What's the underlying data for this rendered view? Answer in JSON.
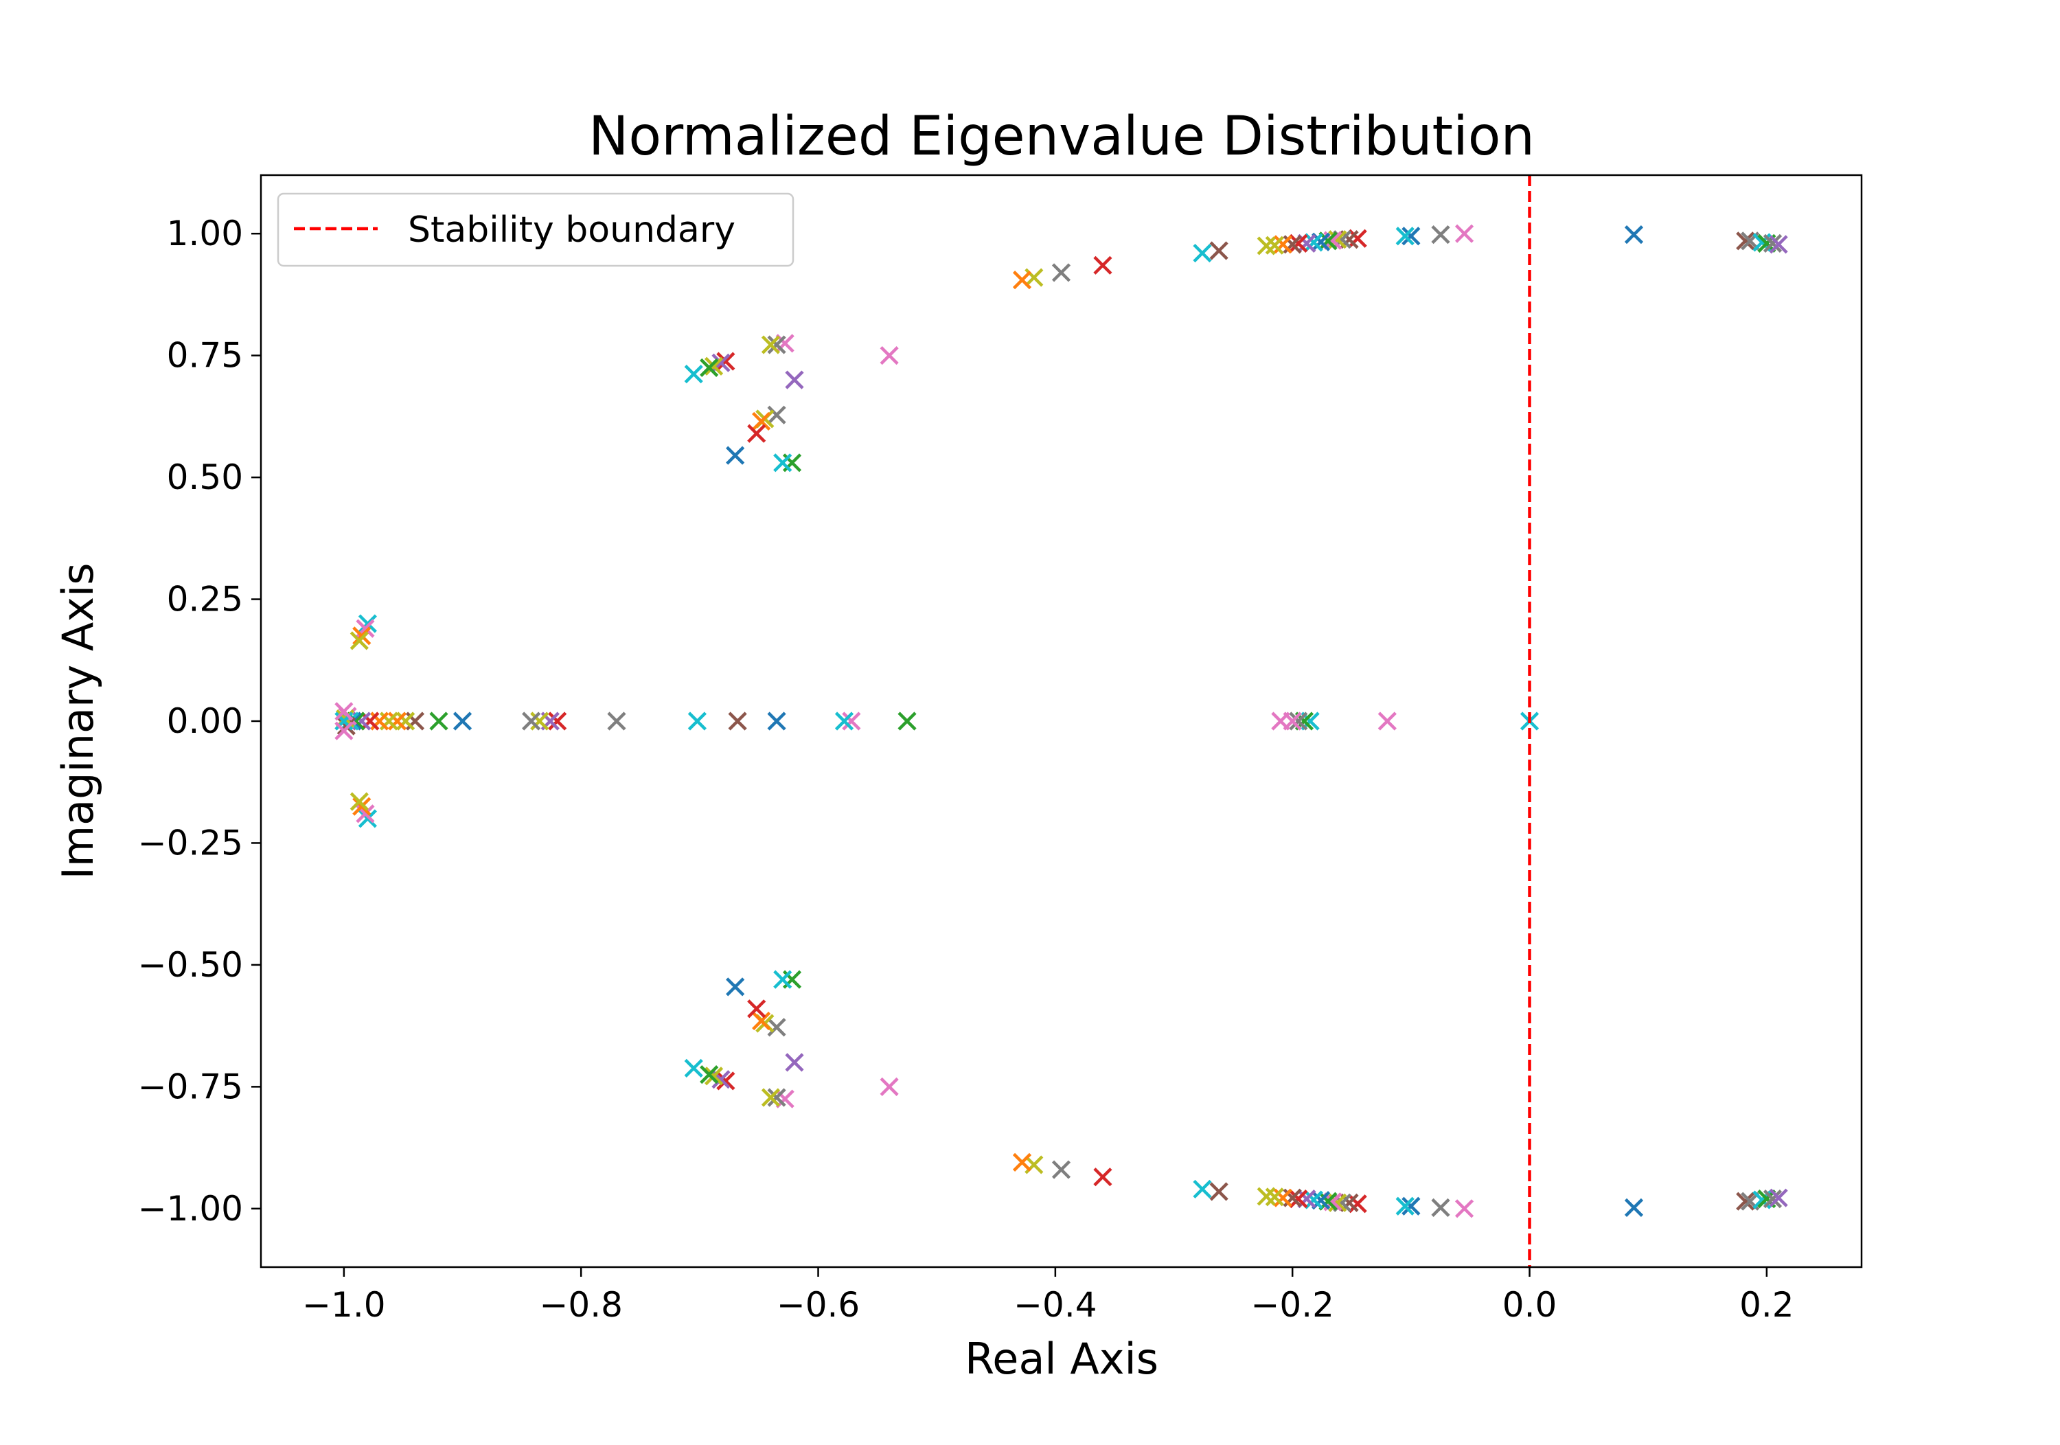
{
  "chart_data": {
    "type": "scatter",
    "title": "Normalized Eigenvalue Distribution",
    "xlabel": "Real Axis",
    "ylabel": "Imaginary Axis",
    "xlim": [
      -1.07,
      0.28
    ],
    "ylim": [
      -1.12,
      1.12
    ],
    "x_ticks": [
      -1.0,
      -0.8,
      -0.6,
      -0.4,
      -0.2,
      0.0,
      0.2
    ],
    "x_tick_labels": [
      "−1.0",
      "−0.8",
      "−0.6",
      "−0.4",
      "−0.2",
      "0.0",
      "0.2"
    ],
    "y_ticks": [
      1.0,
      0.75,
      0.5,
      0.25,
      0.0,
      -0.25,
      -0.5,
      -0.75,
      -1.0
    ],
    "y_tick_labels": [
      "1.00",
      "0.75",
      "0.50",
      "0.25",
      "0.00",
      "−0.25",
      "−0.50",
      "−0.75",
      "−1.00"
    ],
    "grid": false,
    "marker": "x",
    "legend": {
      "placement": "upper-left",
      "entries": [
        {
          "label": "Stability boundary",
          "color": "#ff0000",
          "style": "dashed"
        }
      ]
    },
    "reference_line": {
      "x": 0.0,
      "color": "#ff0000",
      "style": "dashed"
    },
    "palette": [
      "#1f77b4",
      "#ff7f0e",
      "#2ca02c",
      "#d62728",
      "#9467bd",
      "#8c564b",
      "#e377c2",
      "#7f7f7f",
      "#bcbd22",
      "#17becf"
    ],
    "points": [
      {
        "x": 0.088,
        "y": 0.998,
        "c": 0
      },
      {
        "x": 0.182,
        "y": 0.985,
        "c": 5
      },
      {
        "x": 0.186,
        "y": 0.985,
        "c": 7
      },
      {
        "x": 0.196,
        "y": 0.982,
        "c": 9
      },
      {
        "x": 0.2,
        "y": 0.98,
        "c": 2
      },
      {
        "x": 0.205,
        "y": 0.98,
        "c": 7
      },
      {
        "x": 0.21,
        "y": 0.978,
        "c": 4
      },
      {
        "x": -0.055,
        "y": 1.0,
        "c": 6
      },
      {
        "x": -0.075,
        "y": 0.998,
        "c": 7
      },
      {
        "x": -0.1,
        "y": 0.995,
        "c": 0
      },
      {
        "x": -0.105,
        "y": 0.995,
        "c": 9
      },
      {
        "x": -0.145,
        "y": 0.99,
        "c": 3
      },
      {
        "x": -0.152,
        "y": 0.988,
        "c": 5
      },
      {
        "x": -0.158,
        "y": 0.988,
        "c": 7
      },
      {
        "x": -0.162,
        "y": 0.988,
        "c": 8
      },
      {
        "x": -0.166,
        "y": 0.986,
        "c": 6
      },
      {
        "x": -0.17,
        "y": 0.985,
        "c": 2
      },
      {
        "x": -0.176,
        "y": 0.983,
        "c": 0
      },
      {
        "x": -0.182,
        "y": 0.982,
        "c": 9
      },
      {
        "x": -0.188,
        "y": 0.98,
        "c": 4
      },
      {
        "x": -0.195,
        "y": 0.98,
        "c": 3
      },
      {
        "x": -0.2,
        "y": 0.978,
        "c": 5
      },
      {
        "x": -0.208,
        "y": 0.978,
        "c": 1
      },
      {
        "x": -0.215,
        "y": 0.976,
        "c": 8
      },
      {
        "x": -0.222,
        "y": 0.975,
        "c": 8
      },
      {
        "x": -0.262,
        "y": 0.965,
        "c": 5
      },
      {
        "x": -0.276,
        "y": 0.96,
        "c": 9
      },
      {
        "x": -0.36,
        "y": 0.935,
        "c": 3
      },
      {
        "x": -0.395,
        "y": 0.92,
        "c": 7
      },
      {
        "x": -0.418,
        "y": 0.91,
        "c": 8
      },
      {
        "x": -0.428,
        "y": 0.905,
        "c": 1
      },
      {
        "x": -0.54,
        "y": 0.75,
        "c": 6
      },
      {
        "x": -0.62,
        "y": 0.7,
        "c": 4
      },
      {
        "x": -0.622,
        "y": 0.53,
        "c": 2
      },
      {
        "x": -0.63,
        "y": 0.53,
        "c": 9
      },
      {
        "x": -0.628,
        "y": 0.775,
        "c": 6
      },
      {
        "x": -0.635,
        "y": 0.772,
        "c": 7
      },
      {
        "x": -0.64,
        "y": 0.772,
        "c": 8
      },
      {
        "x": -0.635,
        "y": 0.628,
        "c": 7
      },
      {
        "x": -0.645,
        "y": 0.62,
        "c": 8
      },
      {
        "x": -0.648,
        "y": 0.615,
        "c": 1
      },
      {
        "x": -0.652,
        "y": 0.59,
        "c": 3
      },
      {
        "x": -0.67,
        "y": 0.545,
        "c": 0
      },
      {
        "x": -0.678,
        "y": 0.738,
        "c": 3
      },
      {
        "x": -0.682,
        "y": 0.735,
        "c": 4
      },
      {
        "x": -0.688,
        "y": 0.728,
        "c": 8
      },
      {
        "x": -0.692,
        "y": 0.725,
        "c": 2
      },
      {
        "x": -0.705,
        "y": 0.712,
        "c": 9
      },
      {
        "x": -0.98,
        "y": 0.2,
        "c": 9
      },
      {
        "x": -0.982,
        "y": 0.19,
        "c": 6
      },
      {
        "x": -0.985,
        "y": 0.175,
        "c": 1
      },
      {
        "x": -0.987,
        "y": 0.165,
        "c": 8
      },
      {
        "x": 0.0,
        "y": 0.0,
        "c": 9
      },
      {
        "x": -0.12,
        "y": 0.0,
        "c": 6
      },
      {
        "x": -0.185,
        "y": 0.0,
        "c": 9
      },
      {
        "x": -0.19,
        "y": 0.0,
        "c": 2
      },
      {
        "x": -0.195,
        "y": 0.0,
        "c": 7
      },
      {
        "x": -0.2,
        "y": 0.0,
        "c": 6
      },
      {
        "x": -0.21,
        "y": 0.0,
        "c": 6
      },
      {
        "x": -0.525,
        "y": 0.0,
        "c": 2
      },
      {
        "x": -0.572,
        "y": 0.0,
        "c": 6
      },
      {
        "x": -0.578,
        "y": 0.0,
        "c": 9
      },
      {
        "x": -0.635,
        "y": 0.0,
        "c": 0
      },
      {
        "x": -0.668,
        "y": 0.0,
        "c": 5
      },
      {
        "x": -0.702,
        "y": 0.0,
        "c": 9
      },
      {
        "x": -0.77,
        "y": 0.0,
        "c": 7
      },
      {
        "x": -0.82,
        "y": 0.0,
        "c": 3
      },
      {
        "x": -0.826,
        "y": 0.0,
        "c": 4
      },
      {
        "x": -0.835,
        "y": 0.0,
        "c": 8
      },
      {
        "x": -0.842,
        "y": 0.0,
        "c": 7
      },
      {
        "x": -0.9,
        "y": 0.0,
        "c": 0
      },
      {
        "x": -0.92,
        "y": 0.0,
        "c": 2
      },
      {
        "x": -0.94,
        "y": 0.0,
        "c": 5
      },
      {
        "x": -0.948,
        "y": 0.0,
        "c": 8
      },
      {
        "x": -0.955,
        "y": 0.0,
        "c": 1
      },
      {
        "x": -0.962,
        "y": 0.0,
        "c": 8
      },
      {
        "x": -0.97,
        "y": 0.0,
        "c": 1
      },
      {
        "x": -0.978,
        "y": 0.0,
        "c": 3
      },
      {
        "x": -0.985,
        "y": 0.0,
        "c": 4
      },
      {
        "x": -0.99,
        "y": 0.0,
        "c": 2
      },
      {
        "x": -0.993,
        "y": 0.0,
        "c": 0
      },
      {
        "x": -0.995,
        "y": 0.0,
        "c": 9
      },
      {
        "x": -0.997,
        "y": 0.01,
        "c": 6
      },
      {
        "x": -0.998,
        "y": -0.01,
        "c": 5
      },
      {
        "x": -0.999,
        "y": 0.005,
        "c": 8
      },
      {
        "x": -1.0,
        "y": 0.0,
        "c": 9
      },
      {
        "x": -1.0,
        "y": 0.02,
        "c": 6
      },
      {
        "x": -1.0,
        "y": -0.02,
        "c": 6
      },
      {
        "x": 0.088,
        "y": -0.998,
        "c": 0
      },
      {
        "x": 0.182,
        "y": -0.985,
        "c": 5
      },
      {
        "x": 0.186,
        "y": -0.985,
        "c": 7
      },
      {
        "x": 0.196,
        "y": -0.982,
        "c": 9
      },
      {
        "x": 0.2,
        "y": -0.98,
        "c": 2
      },
      {
        "x": 0.205,
        "y": -0.98,
        "c": 7
      },
      {
        "x": 0.21,
        "y": -0.978,
        "c": 4
      },
      {
        "x": -0.055,
        "y": -1.0,
        "c": 6
      },
      {
        "x": -0.075,
        "y": -0.998,
        "c": 7
      },
      {
        "x": -0.1,
        "y": -0.995,
        "c": 0
      },
      {
        "x": -0.105,
        "y": -0.995,
        "c": 9
      },
      {
        "x": -0.145,
        "y": -0.99,
        "c": 3
      },
      {
        "x": -0.152,
        "y": -0.988,
        "c": 5
      },
      {
        "x": -0.158,
        "y": -0.988,
        "c": 7
      },
      {
        "x": -0.162,
        "y": -0.988,
        "c": 8
      },
      {
        "x": -0.166,
        "y": -0.986,
        "c": 6
      },
      {
        "x": -0.17,
        "y": -0.985,
        "c": 2
      },
      {
        "x": -0.176,
        "y": -0.983,
        "c": 0
      },
      {
        "x": -0.182,
        "y": -0.982,
        "c": 9
      },
      {
        "x": -0.188,
        "y": -0.98,
        "c": 4
      },
      {
        "x": -0.195,
        "y": -0.98,
        "c": 3
      },
      {
        "x": -0.2,
        "y": -0.978,
        "c": 5
      },
      {
        "x": -0.208,
        "y": -0.978,
        "c": 1
      },
      {
        "x": -0.215,
        "y": -0.976,
        "c": 8
      },
      {
        "x": -0.222,
        "y": -0.975,
        "c": 8
      },
      {
        "x": -0.262,
        "y": -0.965,
        "c": 5
      },
      {
        "x": -0.276,
        "y": -0.96,
        "c": 9
      },
      {
        "x": -0.36,
        "y": -0.935,
        "c": 3
      },
      {
        "x": -0.395,
        "y": -0.92,
        "c": 7
      },
      {
        "x": -0.418,
        "y": -0.91,
        "c": 8
      },
      {
        "x": -0.428,
        "y": -0.905,
        "c": 1
      },
      {
        "x": -0.54,
        "y": -0.75,
        "c": 6
      },
      {
        "x": -0.62,
        "y": -0.7,
        "c": 4
      },
      {
        "x": -0.622,
        "y": -0.53,
        "c": 2
      },
      {
        "x": -0.63,
        "y": -0.53,
        "c": 9
      },
      {
        "x": -0.628,
        "y": -0.775,
        "c": 6
      },
      {
        "x": -0.635,
        "y": -0.772,
        "c": 7
      },
      {
        "x": -0.64,
        "y": -0.772,
        "c": 8
      },
      {
        "x": -0.635,
        "y": -0.628,
        "c": 7
      },
      {
        "x": -0.645,
        "y": -0.62,
        "c": 8
      },
      {
        "x": -0.648,
        "y": -0.615,
        "c": 1
      },
      {
        "x": -0.652,
        "y": -0.59,
        "c": 3
      },
      {
        "x": -0.67,
        "y": -0.545,
        "c": 0
      },
      {
        "x": -0.678,
        "y": -0.738,
        "c": 3
      },
      {
        "x": -0.682,
        "y": -0.735,
        "c": 4
      },
      {
        "x": -0.688,
        "y": -0.728,
        "c": 8
      },
      {
        "x": -0.692,
        "y": -0.725,
        "c": 2
      },
      {
        "x": -0.705,
        "y": -0.712,
        "c": 9
      },
      {
        "x": -0.98,
        "y": -0.2,
        "c": 9
      },
      {
        "x": -0.982,
        "y": -0.19,
        "c": 6
      },
      {
        "x": -0.985,
        "y": -0.175,
        "c": 1
      },
      {
        "x": -0.987,
        "y": -0.165,
        "c": 8
      }
    ]
  }
}
